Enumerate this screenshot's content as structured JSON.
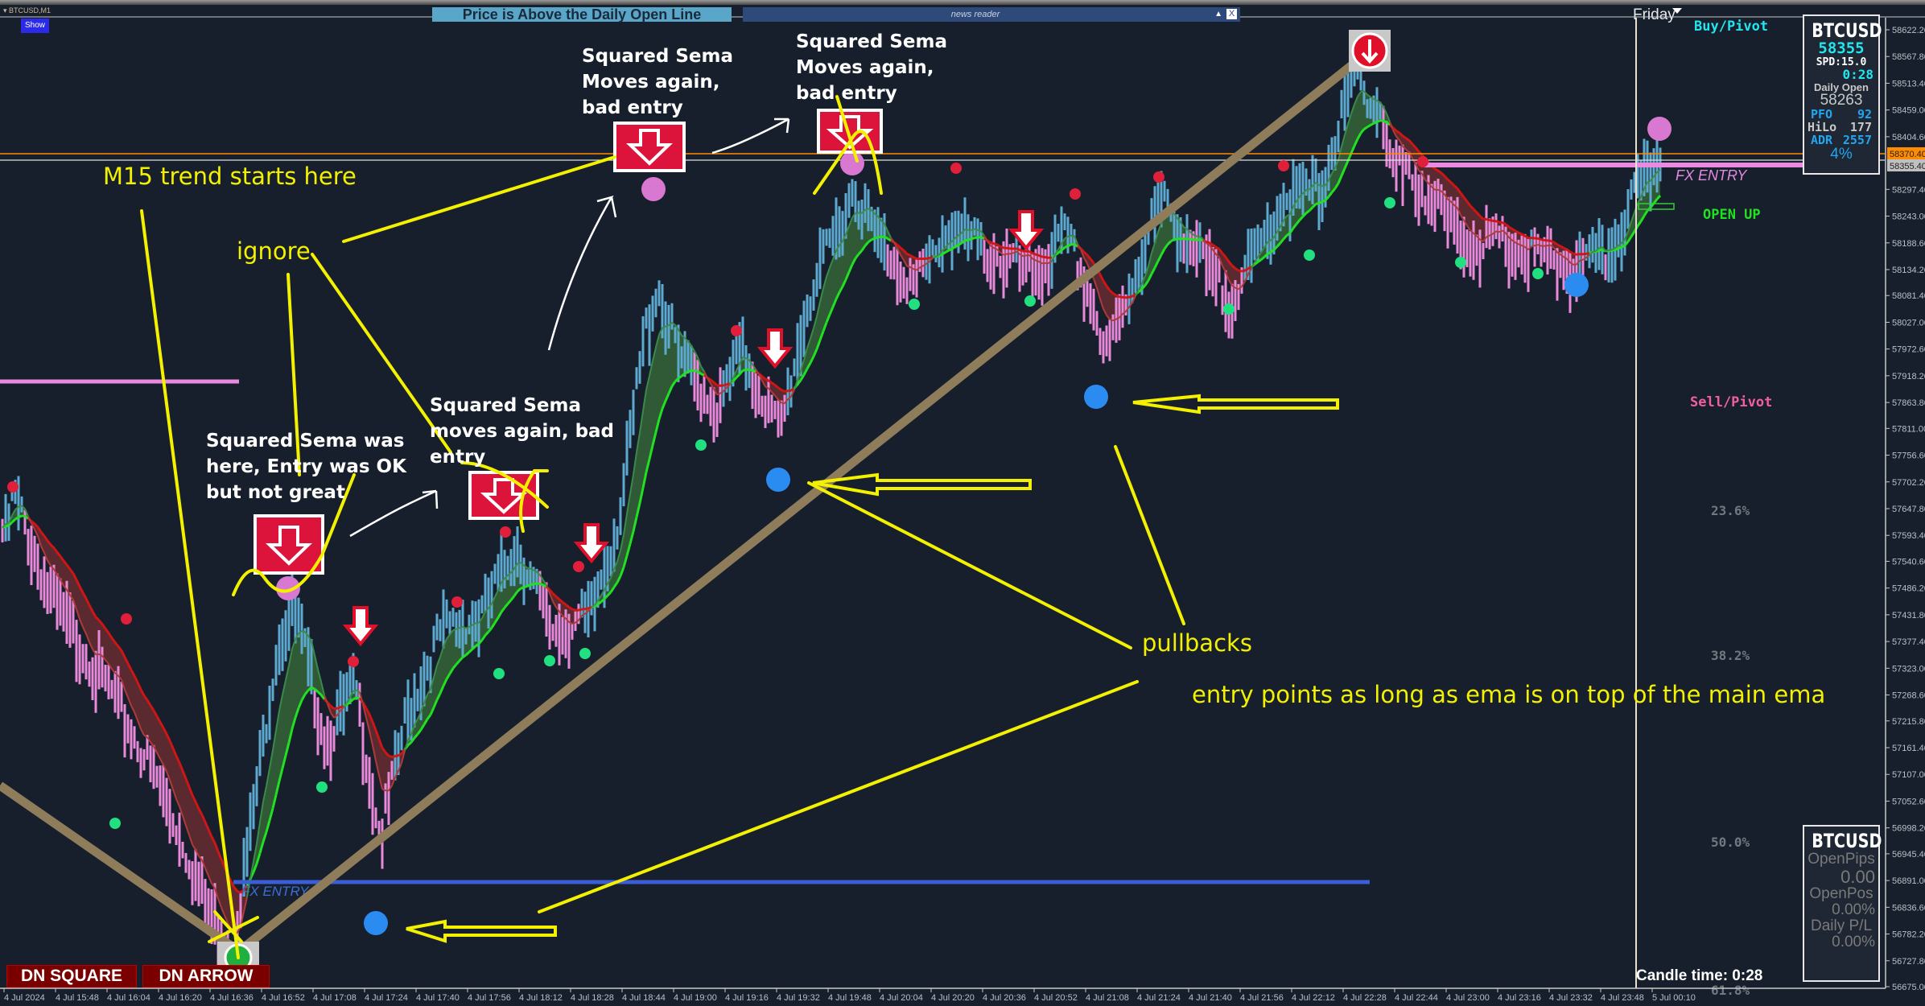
{
  "window": {
    "symbol_title": "BTCUSD,M1",
    "show_button": "Show"
  },
  "banner": {
    "text": "Price is Above the Daily Open Line",
    "color": "#5aa6c8"
  },
  "news_reader": {
    "label": "news reader",
    "up_icon": "triangle-up-icon",
    "close_label": "X"
  },
  "session": {
    "day_label": "Friday"
  },
  "pivots": {
    "buy": "Buy/Pivot",
    "sell": "Sell/Pivot",
    "open_state": "OPEN UP"
  },
  "fib_levels": [
    {
      "label": "23.6%"
    },
    {
      "label": "38.2%"
    },
    {
      "label": "50.0%"
    },
    {
      "label": "61.8%"
    }
  ],
  "info_panel": {
    "symbol": "BTCUSD",
    "price": "58355",
    "spread": "SPD:15.0",
    "timer": "0:28",
    "daily_open_label": "Daily Open",
    "daily_open": "58263",
    "pfo_label": "PFO",
    "pfo": "92",
    "hilo_label": "HiLo",
    "hilo": "177",
    "adr_label": "ADR",
    "adr": "2557",
    "adr_pct": "4%"
  },
  "pl_panel": {
    "symbol": "BTCUSD",
    "open_pips_label": "OpenPips",
    "open_pips": "0.00",
    "open_pos_label": "OpenPos",
    "open_pos": "0.00%",
    "daily_pl_label": "Daily P/L",
    "daily_pl": "0.00%"
  },
  "candle_time": "Candle time:  0:28",
  "buttons": {
    "dn_square": "DN SQUARE",
    "dn_arrow": "DN ARROW"
  },
  "entry_labels": {
    "left": "FX ENTRY",
    "right": "FX ENTRY"
  },
  "price_labels": {
    "ask": "58370.40",
    "bid": "58355.40",
    "ask_color": "#ff8c00",
    "bid_color": "#c0c0c0"
  },
  "annotations": {
    "m15": "M15 trend starts here",
    "ignore": "ignore",
    "pullbacks": "pullbacks",
    "entry_points": "entry points  as long as ema is on top of the main ema",
    "note1": [
      "Squared Sema was",
      "here, Entry was OK",
      "but not great"
    ],
    "note2": [
      "Squared Sema",
      "moves again, bad",
      "entry"
    ],
    "note3": [
      "Squared Sema",
      "Moves again,",
      "bad entry"
    ],
    "note4": [
      "Squared Sema",
      "Moves again,",
      "bad entry"
    ]
  },
  "chart_data": {
    "type": "candlestick",
    "symbol": "BTCUSD",
    "timeframe": "M1",
    "ylim": [
      56675.0,
      58622.2
    ],
    "y_ticks": [
      "58622.20",
      "58567.80",
      "58513.40",
      "58459.00",
      "58404.60",
      "58297.40",
      "58243.00",
      "58188.60",
      "58134.20",
      "58081.40",
      "58027.00",
      "57972.60",
      "57918.20",
      "57863.80",
      "57811.00",
      "57756.60",
      "57702.20",
      "57647.80",
      "57593.40",
      "57540.60",
      "57486.20",
      "57431.80",
      "57377.40",
      "57323.00",
      "57268.60",
      "57215.80",
      "57161.40",
      "57107.00",
      "57052.60",
      "56998.20",
      "56945.40",
      "56891.00",
      "56836.60",
      "56782.20",
      "56727.80",
      "56675.00"
    ],
    "x_ticks": [
      "4 Jul 2024",
      "4 Jul 15:48",
      "4 Jul 16:04",
      "4 Jul 16:20",
      "4 Jul 16:36",
      "4 Jul 16:52",
      "4 Jul 17:08",
      "4 Jul 17:24",
      "4 Jul 17:40",
      "4 Jul 17:56",
      "4 Jul 18:12",
      "4 Jul 18:28",
      "4 Jul 18:44",
      "4 Jul 19:00",
      "4 Jul 19:16",
      "4 Jul 19:32",
      "4 Jul 19:48",
      "4 Jul 20:04",
      "4 Jul 20:20",
      "4 Jul 20:36",
      "4 Jul 20:52",
      "4 Jul 21:08",
      "4 Jul 21:24",
      "4 Jul 21:40",
      "4 Jul 21:56",
      "4 Jul 22:12",
      "4 Jul 22:28",
      "4 Jul 22:44",
      "4 Jul 23:00",
      "4 Jul 23:16",
      "4 Jul 23:32",
      "4 Jul 23:48",
      "5 Jul 00:10"
    ],
    "close_path": [
      [
        "15:33",
        57609
      ],
      [
        "15:35",
        57684
      ],
      [
        "15:46",
        57484
      ],
      [
        "16:05",
        57284
      ],
      [
        "16:21",
        57084
      ],
      [
        "16:36",
        56834
      ],
      [
        "16:43",
        56759
      ],
      [
        "16:47",
        56934
      ],
      [
        "16:57",
        57384
      ],
      [
        "17:02",
        57459
      ],
      [
        "17:12",
        57184
      ],
      [
        "17:21",
        57296
      ],
      [
        "17:29",
        56984
      ],
      [
        "17:37",
        57234
      ],
      [
        "17:48",
        57409
      ],
      [
        "18:00",
        57434
      ],
      [
        "18:11",
        57584
      ],
      [
        "18:22",
        57409
      ],
      [
        "18:34",
        57434
      ],
      [
        "18:43",
        57634
      ],
      [
        "18:51",
        58008
      ],
      [
        "18:55",
        58108
      ],
      [
        "19:02",
        57958
      ],
      [
        "19:14",
        57858
      ],
      [
        "19:21",
        57983
      ],
      [
        "19:33",
        57808
      ],
      [
        "19:41",
        58058
      ],
      [
        "19:48",
        58183
      ],
      [
        "19:56",
        58308
      ],
      [
        "20:03",
        58208
      ],
      [
        "20:15",
        58108
      ],
      [
        "20:26",
        58233
      ],
      [
        "20:36",
        58183
      ],
      [
        "20:51",
        58133
      ],
      [
        "21:02",
        58208
      ],
      [
        "21:10",
        58083
      ],
      [
        "21:14",
        57958
      ],
      [
        "21:22",
        58108
      ],
      [
        "21:31",
        58283
      ],
      [
        "21:42",
        58183
      ],
      [
        "21:52",
        58083
      ],
      [
        "22:00",
        58158
      ],
      [
        "22:09",
        58283
      ],
      [
        "22:21",
        58308
      ],
      [
        "22:28",
        58458
      ],
      [
        "22:32",
        58533
      ],
      [
        "22:40",
        58458
      ],
      [
        "22:43",
        58358
      ],
      [
        "22:53",
        58308
      ],
      [
        "23:04",
        58208
      ],
      [
        "23:16",
        58196
      ],
      [
        "23:27",
        58171
      ],
      [
        "23:39",
        58146
      ],
      [
        "23:50",
        58171
      ],
      [
        "00:00",
        58308
      ],
      [
        "00:07",
        58383
      ]
    ],
    "ema_fast_period": 8,
    "ema_slow_period": 21,
    "colors": {
      "bull_bar": "#5ea9cf",
      "bear_bar": "#e88ad9",
      "ema_up": "#22e022",
      "ema_down": "#d01515",
      "fill_up": "#2f5a35",
      "fill_down": "#5a2a30",
      "trendline": "#8f7c5a"
    }
  }
}
